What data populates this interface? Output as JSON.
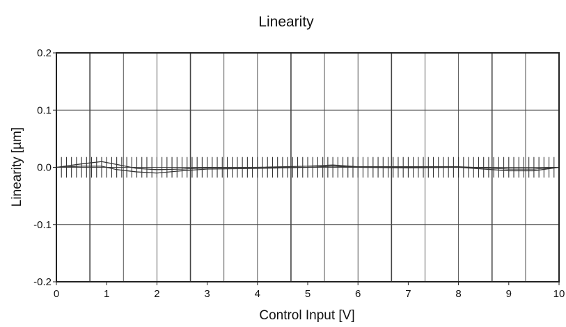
{
  "chart_data": {
    "type": "line",
    "title": "Linearity",
    "xlabel": "Control Input [V]",
    "ylabel": "Linearity [µm]",
    "xlim": [
      0,
      10
    ],
    "ylim": [
      -0.2,
      0.2
    ],
    "x_ticks": [
      0,
      1,
      2,
      3,
      4,
      5,
      6,
      7,
      8,
      9,
      10
    ],
    "x_tick_labels": [
      "0",
      "1",
      "2",
      "3",
      "4",
      "5",
      "6",
      "7",
      "8",
      "9",
      "10"
    ],
    "y_ticks": [
      -0.2,
      -0.1,
      0.0,
      0.1,
      0.2
    ],
    "y_tick_labels": [
      "-0.2",
      "-0.1",
      "0.0",
      "0.1",
      "0.2"
    ],
    "grid": true,
    "legend": "none",
    "colors": {
      "line": "#333333",
      "grid": "#444444",
      "frame": "#222222"
    },
    "series": [
      {
        "x": [
          0,
          0.5,
          0.9,
          1.2,
          1.6,
          2.0,
          2.5,
          3.0,
          4.0,
          5.0,
          5.5,
          6.0,
          7.0,
          8.0,
          8.5,
          9.0,
          9.5,
          10.0
        ],
        "values": [
          0.0,
          0.006,
          0.01,
          0.005,
          -0.002,
          -0.004,
          -0.003,
          -0.001,
          0.0,
          0.002,
          0.004,
          0.001,
          0.001,
          0.001,
          -0.001,
          -0.003,
          -0.003,
          0.0
        ]
      },
      {
        "x": [
          0,
          0.5,
          0.9,
          1.2,
          1.6,
          2.0,
          2.5,
          3.0,
          4.0,
          5.0,
          5.5,
          6.0,
          7.0,
          8.0,
          8.5,
          9.0,
          9.5,
          10.0
        ],
        "values": [
          0.0,
          0.002,
          0.002,
          -0.004,
          -0.008,
          -0.01,
          -0.006,
          -0.003,
          -0.002,
          0.0,
          0.002,
          0.0,
          -0.001,
          0.0,
          -0.003,
          -0.006,
          -0.006,
          0.0
        ]
      }
    ],
    "error_bars": {
      "x_start": 0.1,
      "x_end": 9.9,
      "step": 0.1,
      "half_height": 0.018
    }
  }
}
